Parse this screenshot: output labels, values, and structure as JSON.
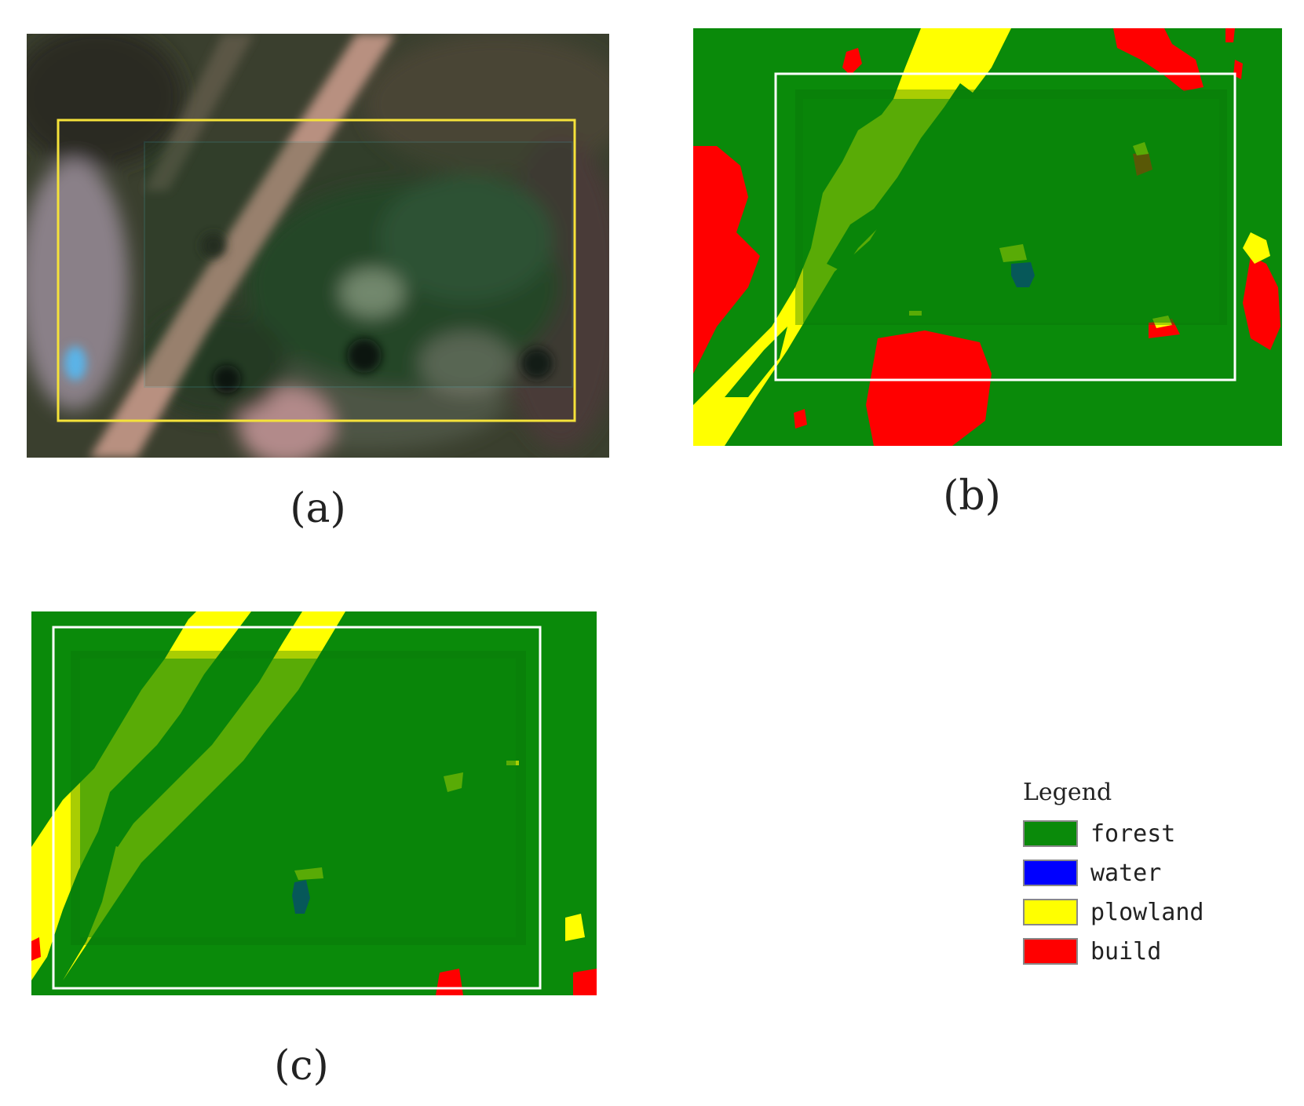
{
  "panels": [
    {
      "id": "a",
      "caption": "(a)",
      "kind": "satellite-image"
    },
    {
      "id": "b",
      "caption": "(b)",
      "kind": "classification-map"
    },
    {
      "id": "c",
      "caption": "(c)",
      "kind": "classification-map"
    }
  ],
  "legend": {
    "title": "Legend",
    "items": [
      {
        "label": "forest",
        "color": "#0a8a0a"
      },
      {
        "label": "water",
        "color": "#0000ff"
      },
      {
        "label": "plowland",
        "color": "#ffff00"
      },
      {
        "label": "build",
        "color": "#ff0000"
      }
    ]
  },
  "colors": {
    "forest": "#0a8a0a",
    "forest_dark": "#087008",
    "water": "#0000ff",
    "plowland": "#ffff00",
    "build": "#ff0000",
    "frame_yellow": "#f5e23a",
    "frame_white": "#ffffff",
    "frame_teal": "#2a9a7a"
  }
}
